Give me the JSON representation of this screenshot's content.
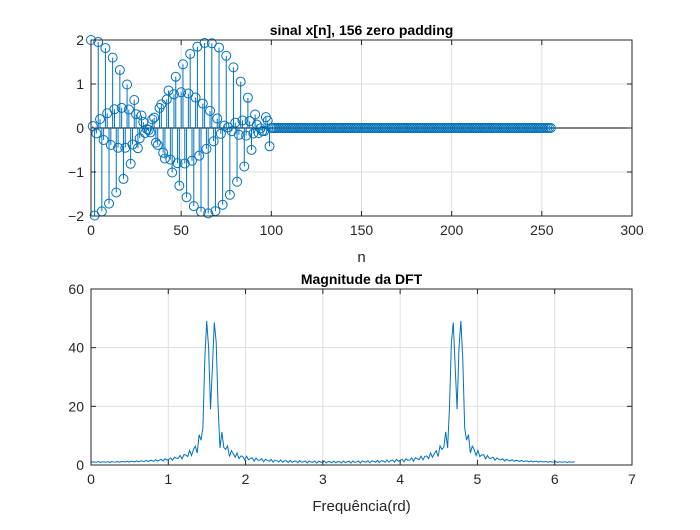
{
  "colors": {
    "series": "#0072bd",
    "axis": "#262626",
    "grid": "#dfdfdf"
  },
  "chart_data": [
    {
      "type": "stem",
      "title": "sinal x[n], 156 zero padding",
      "xlabel": "n",
      "ylabel": "",
      "xlim": [
        0,
        300
      ],
      "ylim": [
        -2,
        2
      ],
      "xticks": [
        0,
        50,
        100,
        150,
        200,
        250,
        300
      ],
      "yticks": [
        -2,
        -1,
        0,
        1,
        2
      ],
      "grid": true,
      "signal_length": 256,
      "nonzero_samples": 100,
      "zero_padding": 156,
      "components": [
        {
          "amplitude": 1,
          "frequency_rad": 1.5
        },
        {
          "amplitude": 1,
          "frequency_rad": 1.6
        }
      ]
    },
    {
      "type": "line",
      "title": "Magnitude da DFT",
      "xlabel": "Frequência(rd)",
      "ylabel": "",
      "xlim": [
        0,
        7
      ],
      "ylim": [
        0,
        60
      ],
      "xticks": [
        0,
        1,
        2,
        3,
        4,
        5,
        6,
        7
      ],
      "yticks": [
        0,
        20,
        40,
        60
      ],
      "grid": true,
      "points": 256,
      "peaks": [
        {
          "x": 1.5,
          "y": 54.5
        },
        {
          "x": 1.57,
          "y": 50.0
        },
        {
          "x": 4.71,
          "y": 50.0
        },
        {
          "x": 4.78,
          "y": 54.5
        }
      ]
    }
  ]
}
